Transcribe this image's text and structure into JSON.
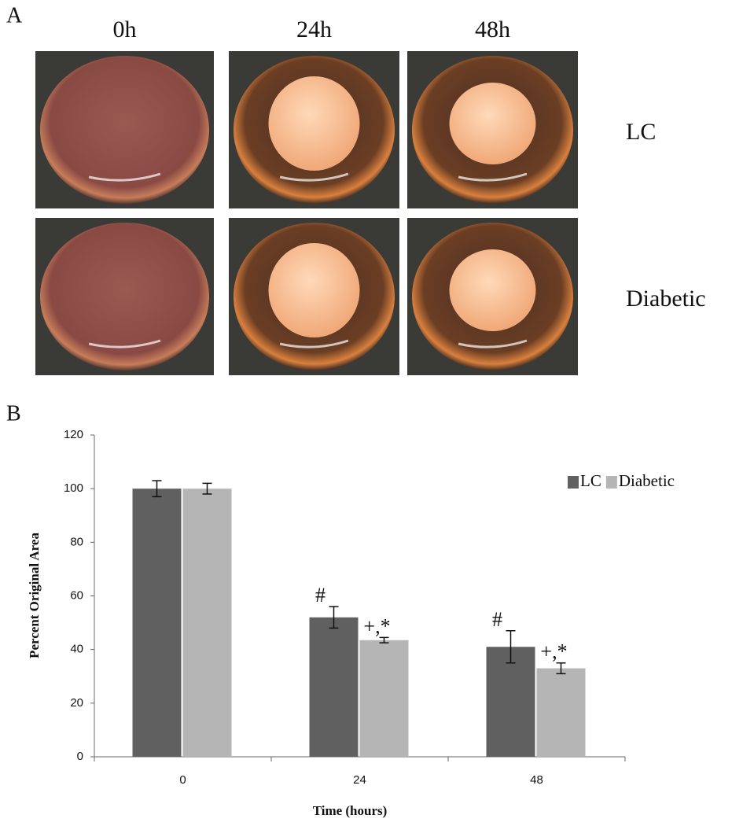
{
  "panel_a": {
    "label": "A",
    "columns": [
      "0h",
      "24h",
      "48h"
    ],
    "rows": [
      "LC",
      "Diabetic"
    ]
  },
  "chart_data": {
    "type": "bar",
    "panel_label": "B",
    "x_label": "Time (hours)",
    "y_label": "Percent Original Area",
    "categories": [
      "0",
      "24",
      "48"
    ],
    "series": [
      {
        "name": "LC",
        "color": "#606060",
        "values": [
          100,
          52,
          41
        ],
        "errors": [
          3,
          4,
          6
        ],
        "labels": [
          null,
          "#",
          "#"
        ]
      },
      {
        "name": "Diabetic",
        "color": "#b5b5b5",
        "values": [
          100,
          43.5,
          33
        ],
        "errors": [
          2,
          1,
          2
        ],
        "labels": [
          null,
          "+,*",
          "+,*"
        ]
      }
    ],
    "ylim": [
      0,
      120
    ],
    "yticks": [
      0,
      20,
      40,
      60,
      80,
      100,
      120
    ],
    "grid": false,
    "legend": "upper right"
  }
}
